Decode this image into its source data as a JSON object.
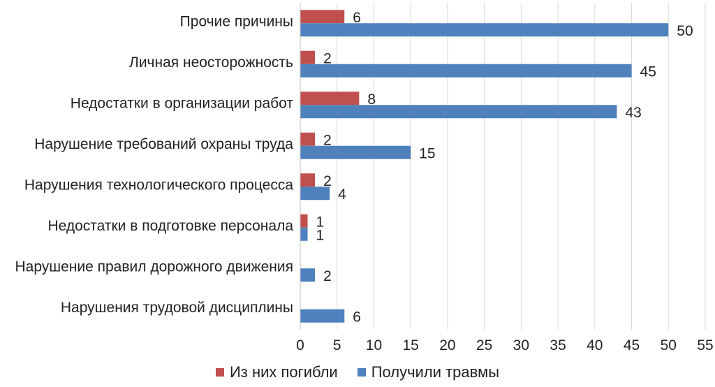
{
  "chart_data": {
    "type": "bar",
    "orientation": "horizontal",
    "categories": [
      "Прочие причины",
      "Личная неосторожность",
      "Недостатки в организации работ",
      "Нарушение требований охраны труда",
      "Нарушения технологического процесса",
      "Недостатки в подготовке персонала",
      "Нарушение правил дорожного движения",
      "Нарушения трудовой дисциплины"
    ],
    "series": [
      {
        "name": "Из них погибли",
        "color": "#c0504d",
        "values": [
          6,
          2,
          8,
          2,
          2,
          1,
          null,
          null
        ]
      },
      {
        "name": "Получили травмы",
        "color": "#4f81bd",
        "values": [
          50,
          45,
          43,
          15,
          4,
          1,
          2,
          6
        ]
      }
    ],
    "xlim": [
      0,
      55
    ],
    "xticks": [
      0,
      5,
      10,
      15,
      20,
      25,
      30,
      35,
      40,
      45,
      50,
      55
    ],
    "grid": true,
    "legend_position": "bottom",
    "data_labels": true
  }
}
